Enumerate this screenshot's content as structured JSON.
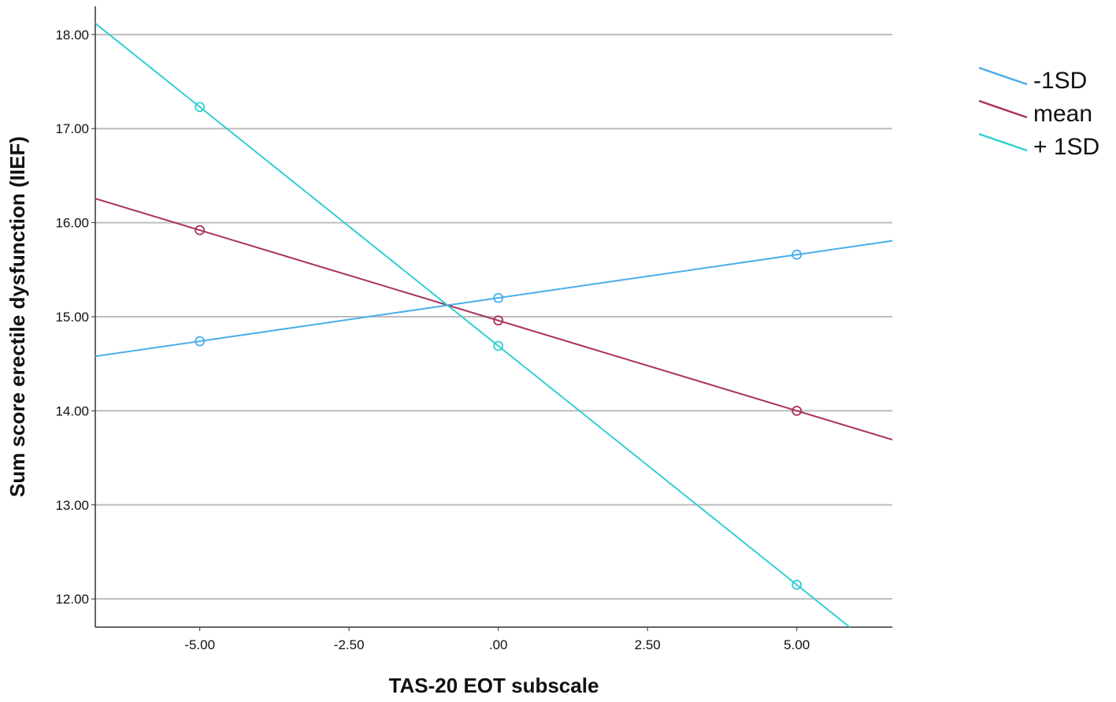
{
  "chart_data": {
    "type": "line",
    "xlabel": "TAS-20 EOT subscale",
    "ylabel": "Sum score erectile dysfunction (IIEF)",
    "xlim": [
      -6.75,
      6.6
    ],
    "ylim": [
      11.7,
      18.3
    ],
    "x_ticks": [
      -5.0,
      -2.5,
      0.0,
      2.5,
      5.0
    ],
    "x_tick_labels": [
      "-5.00",
      "-2.50",
      ".00",
      "2.50",
      "5.00"
    ],
    "y_ticks": [
      12,
      13,
      14,
      15,
      16,
      17,
      18
    ],
    "y_tick_labels": [
      "12.00",
      "13.00",
      "14.00",
      "15.00",
      "16.00",
      "17.00",
      "18.00"
    ],
    "grid": "horizontal",
    "legend_position": "right",
    "series": [
      {
        "name": "-1SD",
        "color": "#4aaee8",
        "x": [
          -5,
          0,
          5
        ],
        "y": [
          14.74,
          15.2,
          15.66
        ]
      },
      {
        "name": "mean",
        "color": "#a8325e",
        "x": [
          -5,
          0,
          5
        ],
        "y": [
          15.92,
          14.96,
          14.0
        ]
      },
      {
        "name": "+ 1SD",
        "color": "#2fd0d4",
        "x": [
          -5,
          0,
          5
        ],
        "y": [
          17.23,
          14.69,
          12.15
        ]
      }
    ]
  }
}
